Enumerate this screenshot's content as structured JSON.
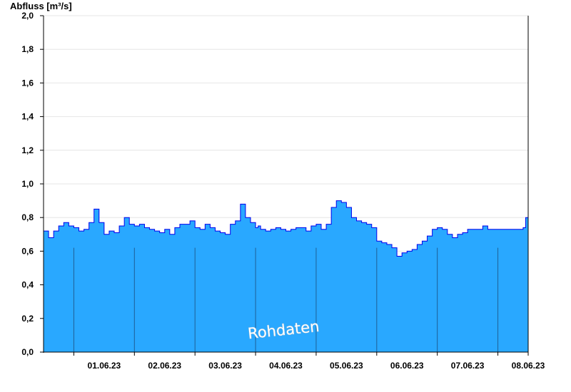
{
  "chart_data": {
    "type": "area",
    "ylabel": "Abfluss [m³/s]",
    "ylim": [
      0,
      2.0
    ],
    "yticks": [
      {
        "value": 0.0,
        "label": "0,0"
      },
      {
        "value": 0.2,
        "label": "0,2"
      },
      {
        "value": 0.4,
        "label": "0,4"
      },
      {
        "value": 0.6,
        "label": "0,6"
      },
      {
        "value": 0.8,
        "label": "0,8"
      },
      {
        "value": 1.0,
        "label": "1,0"
      },
      {
        "value": 1.2,
        "label": "1,2"
      },
      {
        "value": 1.4,
        "label": "1,4"
      },
      {
        "value": 1.6,
        "label": "1,6"
      },
      {
        "value": 1.8,
        "label": "1,8"
      },
      {
        "value": 2.0,
        "label": "2,0"
      }
    ],
    "xlim": [
      "2023-05-31T12:00",
      "2023-06-08T12:00"
    ],
    "xticks": [
      "01.06.23",
      "02.06.23",
      "03.06.23",
      "04.06.23",
      "05.06.23",
      "06.06.23",
      "07.06.23",
      "08.06.23"
    ],
    "grid": true,
    "annotation": "Rohdaten",
    "colors": {
      "fill": "#29A8FF",
      "line": "#0000EE",
      "grid": "#E6E6E6",
      "axis": "#000000"
    },
    "series": [
      {
        "x": [
          "2023-05-31T12:00",
          "2023-05-31T14:00",
          "2023-05-31T16:00",
          "2023-05-31T18:00",
          "2023-05-31T20:00",
          "2023-05-31T22:00",
          "2023-06-01T00:00",
          "2023-06-01T02:00",
          "2023-06-01T04:00",
          "2023-06-01T06:00",
          "2023-06-01T08:00",
          "2023-06-01T10:00",
          "2023-06-01T12:00",
          "2023-06-01T14:00",
          "2023-06-01T16:00",
          "2023-06-01T18:00",
          "2023-06-01T20:00",
          "2023-06-01T22:00",
          "2023-06-02T00:00",
          "2023-06-02T02:00",
          "2023-06-02T04:00",
          "2023-06-02T06:00",
          "2023-06-02T08:00",
          "2023-06-02T10:00",
          "2023-06-02T12:00",
          "2023-06-02T14:00",
          "2023-06-02T16:00",
          "2023-06-02T18:00",
          "2023-06-02T20:00",
          "2023-06-02T22:00",
          "2023-06-03T00:00",
          "2023-06-03T02:00",
          "2023-06-03T04:00",
          "2023-06-03T06:00",
          "2023-06-03T08:00",
          "2023-06-03T10:00",
          "2023-06-03T12:00",
          "2023-06-03T14:00",
          "2023-06-03T16:00",
          "2023-06-03T18:00",
          "2023-06-03T20:00",
          "2023-06-03T22:00",
          "2023-06-04T00:00",
          "2023-06-04T01:00",
          "2023-06-04T02:00",
          "2023-06-04T04:00",
          "2023-06-04T06:00",
          "2023-06-04T08:00",
          "2023-06-04T10:00",
          "2023-06-04T12:00",
          "2023-06-04T14:00",
          "2023-06-04T16:00",
          "2023-06-04T18:00",
          "2023-06-04T20:00",
          "2023-06-04T22:00",
          "2023-06-05T00:00",
          "2023-06-05T02:00",
          "2023-06-05T04:00",
          "2023-06-05T06:00",
          "2023-06-05T08:00",
          "2023-06-05T10:00",
          "2023-06-05T12:00",
          "2023-06-05T14:00",
          "2023-06-05T16:00",
          "2023-06-05T18:00",
          "2023-06-05T20:00",
          "2023-06-05T22:00",
          "2023-06-06T00:00",
          "2023-06-06T02:00",
          "2023-06-06T04:00",
          "2023-06-06T06:00",
          "2023-06-06T08:00",
          "2023-06-06T10:00",
          "2023-06-06T12:00",
          "2023-06-06T14:00",
          "2023-06-06T16:00",
          "2023-06-06T18:00",
          "2023-06-06T20:00",
          "2023-06-06T22:00",
          "2023-06-07T00:00",
          "2023-06-07T02:00",
          "2023-06-07T04:00",
          "2023-06-07T06:00",
          "2023-06-07T08:00",
          "2023-06-07T10:00",
          "2023-06-07T12:00",
          "2023-06-07T14:00",
          "2023-06-07T16:00",
          "2023-06-07T18:00",
          "2023-06-07T20:00",
          "2023-06-07T22:00",
          "2023-06-08T00:00",
          "2023-06-08T02:00",
          "2023-06-08T04:00",
          "2023-06-08T06:00",
          "2023-06-08T08:00",
          "2023-06-08T10:00",
          "2023-06-08T11:00",
          "2023-06-08T12:00"
        ],
        "y": [
          0.72,
          0.68,
          0.72,
          0.75,
          0.77,
          0.75,
          0.74,
          0.72,
          0.73,
          0.77,
          0.85,
          0.77,
          0.7,
          0.72,
          0.71,
          0.75,
          0.8,
          0.76,
          0.75,
          0.76,
          0.74,
          0.73,
          0.72,
          0.71,
          0.73,
          0.7,
          0.74,
          0.76,
          0.76,
          0.78,
          0.74,
          0.73,
          0.76,
          0.74,
          0.72,
          0.71,
          0.7,
          0.76,
          0.78,
          0.88,
          0.8,
          0.77,
          0.74,
          0.75,
          0.73,
          0.72,
          0.73,
          0.74,
          0.73,
          0.72,
          0.73,
          0.74,
          0.74,
          0.72,
          0.75,
          0.76,
          0.73,
          0.76,
          0.86,
          0.9,
          0.89,
          0.86,
          0.8,
          0.78,
          0.77,
          0.76,
          0.74,
          0.66,
          0.65,
          0.64,
          0.62,
          0.57,
          0.59,
          0.6,
          0.61,
          0.64,
          0.66,
          0.69,
          0.73,
          0.74,
          0.73,
          0.7,
          0.68,
          0.7,
          0.71,
          0.73,
          0.73,
          0.73,
          0.75,
          0.73,
          0.73,
          0.73,
          0.73,
          0.73,
          0.73,
          0.73,
          0.74,
          0.8,
          0.74
        ]
      }
    ]
  }
}
